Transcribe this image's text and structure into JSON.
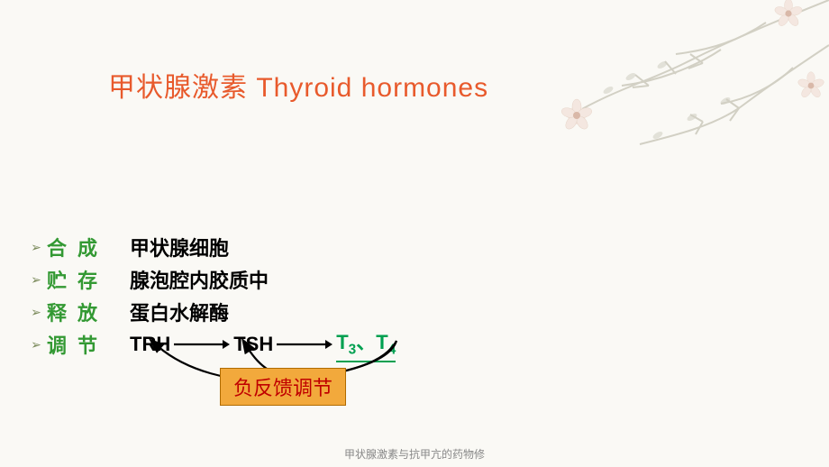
{
  "title": {
    "text": "甲状腺激素 Thyroid hormones",
    "color": "#e85a2c",
    "fontsize": 30
  },
  "bullet_glyph": "➢",
  "rows": [
    {
      "label": "合成",
      "value": "甲状腺细胞"
    },
    {
      "label": "贮存",
      "value": "腺泡腔内胶质中"
    },
    {
      "label": "释放",
      "value": "蛋白水解酶"
    },
    {
      "label": "调节",
      "value": ""
    }
  ],
  "flow": {
    "items": [
      "TRH",
      "TSH"
    ],
    "end_html": "T<sub>3</sub>、T<sub>4</sub>",
    "arrow_color": "#000000",
    "end_color": "#00a050"
  },
  "feedback": {
    "text": "负反馈调节",
    "box_bg": "#f2a93c",
    "box_border": "#b06b00",
    "text_color": "#c00000",
    "arrow_color": "#000000"
  },
  "style": {
    "label_color": "#339933",
    "value_color": "#000000",
    "body_fontsize": 22,
    "background": "#faf9f5",
    "bullet_color": "#7a8a5a"
  },
  "decor": {
    "branch_color": "#d2d0c4",
    "flower_base": "#f4e7e0",
    "flower_center": "#d9b8a8"
  },
  "footer": "甲状腺激素与抗甲亢的药物修"
}
